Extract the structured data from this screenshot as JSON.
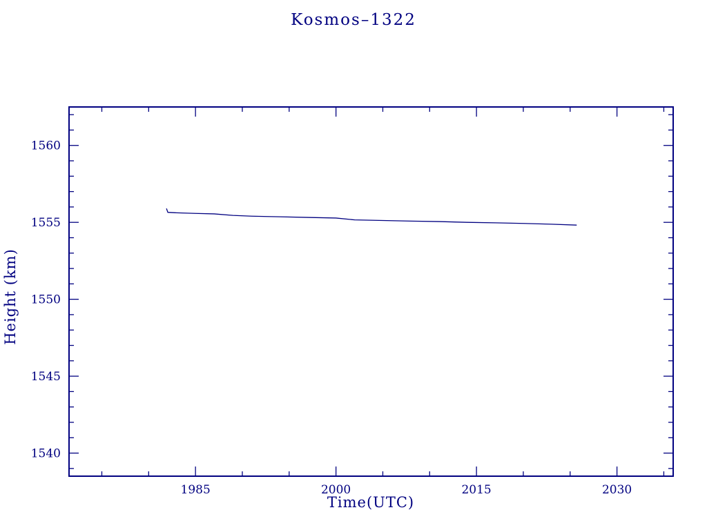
{
  "page": {
    "background": "#ffffff",
    "accent_color": "#000080"
  },
  "chart_data": {
    "type": "line",
    "title": "Kosmos–1322",
    "xlabel": "Time(UTC)",
    "ylabel": "Height (km)",
    "xlim": [
      1971.5,
      2036
    ],
    "ylim": [
      1538.5,
      1562.5
    ],
    "x_major_ticks": [
      1985,
      2000,
      2015,
      2030
    ],
    "x_tick_labels": [
      "1985",
      "2000",
      "2015",
      "2030"
    ],
    "x_minor_step": 5,
    "y_major_ticks": [
      1540,
      1545,
      1550,
      1555,
      1560
    ],
    "y_tick_labels": [
      "1540",
      "1545",
      "1550",
      "1555",
      "1560"
    ],
    "y_minor_step": 1,
    "grid": false,
    "legend": "none",
    "line_color": "#000080",
    "frame_color": "#000080",
    "series": [
      {
        "name": "height",
        "points": [
          [
            1981.9,
            1555.9
          ],
          [
            1982.05,
            1555.65
          ],
          [
            1983.0,
            1555.62
          ],
          [
            1985.0,
            1555.58
          ],
          [
            1987.0,
            1555.55
          ],
          [
            1989.0,
            1555.45
          ],
          [
            1991.0,
            1555.4
          ],
          [
            1994.0,
            1555.36
          ],
          [
            1997.0,
            1555.32
          ],
          [
            2000.0,
            1555.28
          ],
          [
            2002.0,
            1555.16
          ],
          [
            2005.0,
            1555.12
          ],
          [
            2008.0,
            1555.08
          ],
          [
            2011.0,
            1555.05
          ],
          [
            2014.0,
            1555.0
          ],
          [
            2017.0,
            1554.97
          ],
          [
            2020.0,
            1554.93
          ],
          [
            2023.0,
            1554.88
          ],
          [
            2025.7,
            1554.82
          ]
        ]
      }
    ]
  }
}
